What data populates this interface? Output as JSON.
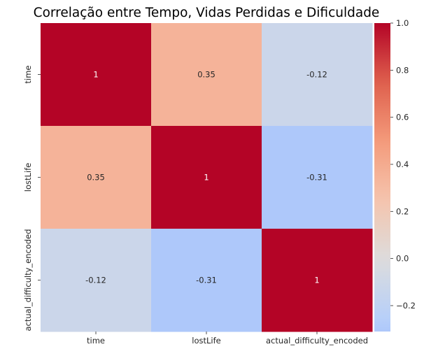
{
  "chart_data": {
    "type": "heatmap",
    "title": "Correlação entre Tempo, Vidas Perdidas e Dificuldade",
    "xlabel": "",
    "ylabel": "",
    "x_categories": [
      "time",
      "lostLife",
      "actual_difficulty_encoded"
    ],
    "y_categories": [
      "time",
      "lostLife",
      "actual_difficulty_encoded"
    ],
    "values": [
      [
        1,
        0.35,
        -0.12
      ],
      [
        0.35,
        1,
        -0.31
      ],
      [
        -0.12,
        -0.31,
        1
      ]
    ],
    "annotations": [
      [
        "1",
        "0.35",
        "-0.12"
      ],
      [
        "0.35",
        "1",
        "-0.31"
      ],
      [
        "-0.12",
        "-0.31",
        "1"
      ]
    ],
    "colormap": "coolwarm",
    "colors": {
      "high": "#b40426",
      "mid": "#dddcdc",
      "low": "#3b4cc0"
    },
    "colorbar": {
      "vmin": -0.31,
      "vmax": 1.0,
      "center": 0,
      "ticks": [
        -0.2,
        0.0,
        0.2,
        0.4,
        0.6,
        0.8,
        1.0
      ],
      "tick_labels": [
        "−0.2",
        "0.0",
        "0.2",
        "0.4",
        "0.6",
        "0.8",
        "1.0"
      ]
    },
    "grid": false,
    "legend": "colorbar-right"
  }
}
